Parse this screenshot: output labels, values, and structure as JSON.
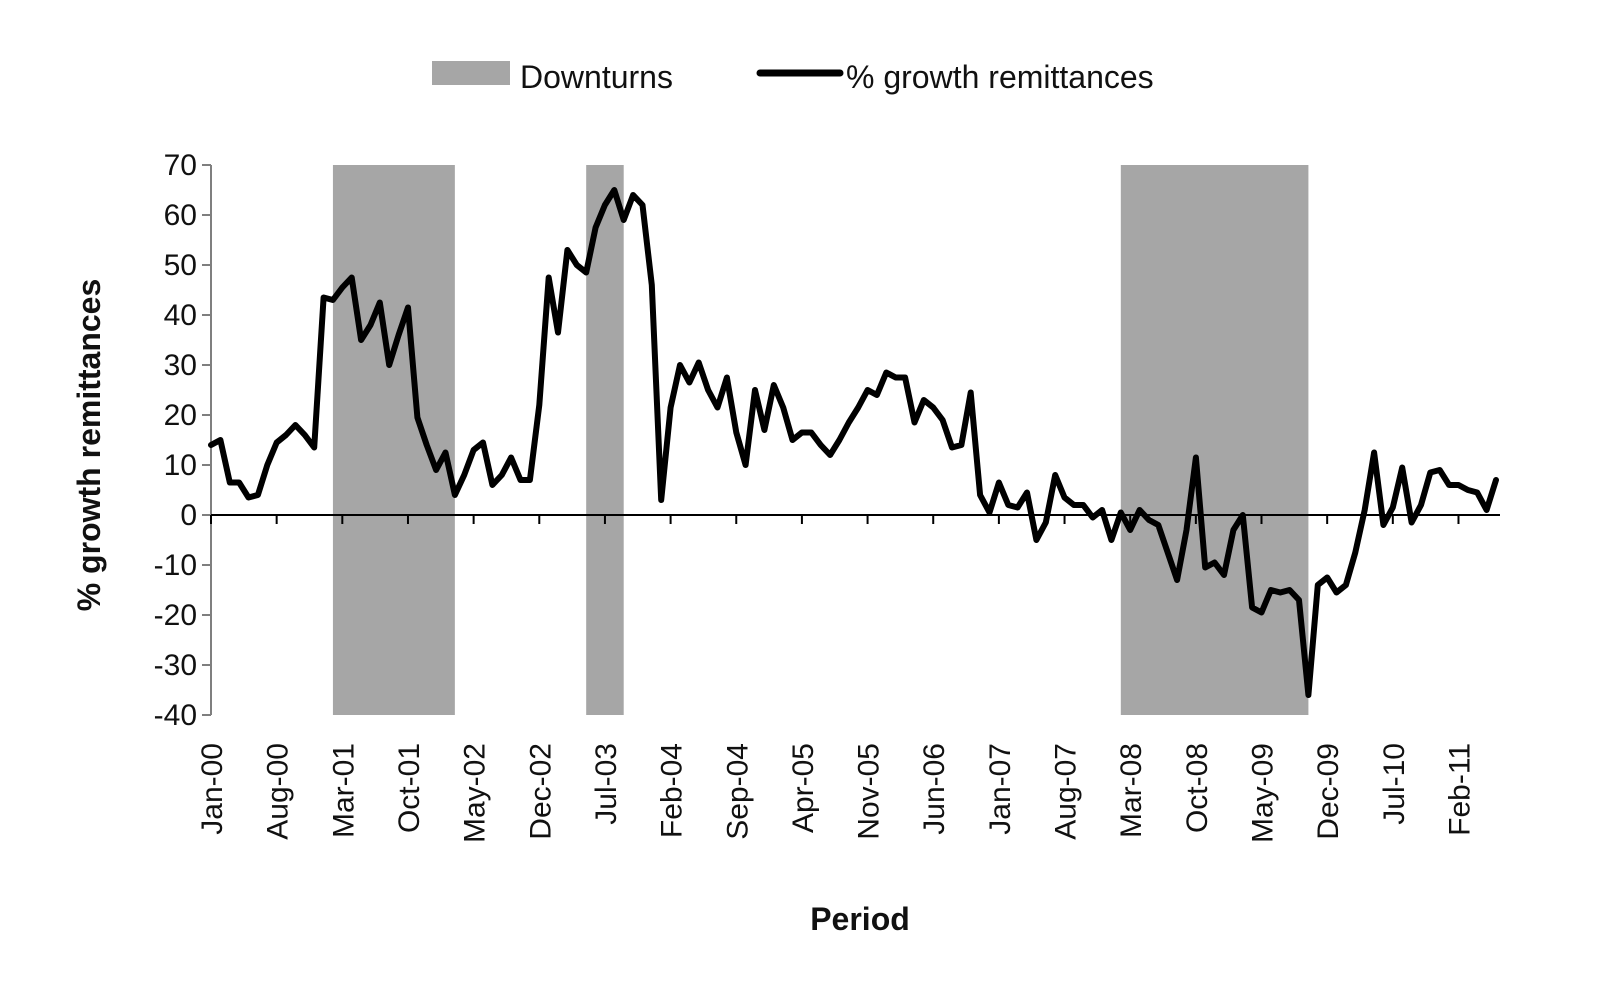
{
  "chart_data": {
    "type": "line",
    "title": "",
    "xlabel": "Period",
    "ylabel": "% growth remittances",
    "ylim": [
      -40,
      70
    ],
    "yticks": [
      70,
      60,
      50,
      40,
      30,
      20,
      10,
      0,
      -10,
      -20,
      -30,
      -40
    ],
    "x_start": "Jan-00",
    "x_end": "Jul-11",
    "x_tick_labels": [
      "Jan-00",
      "Aug-00",
      "Mar-01",
      "Oct-01",
      "May-02",
      "Dec-02",
      "Jul-03",
      "Feb-04",
      "Sep-04",
      "Apr-05",
      "Nov-05",
      "Jun-06",
      "Jan-07",
      "Aug-07",
      "Mar-08",
      "Oct-08",
      "May-09",
      "Dec-09",
      "Jul-10",
      "Feb-11"
    ],
    "grid": false,
    "legend": {
      "position": "top",
      "entries": [
        {
          "label": "Downturns",
          "kind": "area",
          "color": "#a6a6a6"
        },
        {
          "label": "% growth remittances",
          "kind": "line",
          "color": "#000000"
        }
      ]
    },
    "shaded_regions": [
      {
        "label": "Downturns",
        "start": "Feb-01",
        "end": "Mar-02"
      },
      {
        "label": "Downturns",
        "start": "May-03",
        "end": "Sep-03"
      },
      {
        "label": "Downturns",
        "start": "Feb-08",
        "end": "Oct-09"
      }
    ],
    "series": [
      {
        "name": "% growth remittances",
        "color": "#000000",
        "values": [
          14,
          15,
          6.5,
          6.5,
          3.5,
          4,
          10,
          14.5,
          16,
          18,
          16,
          13.5,
          43.5,
          43,
          45.5,
          47.5,
          35,
          38,
          42.5,
          30,
          36,
          41.5,
          19.5,
          14,
          9,
          12.5,
          4,
          8,
          13,
          14.5,
          6,
          8,
          11.5,
          7,
          7,
          22,
          47.5,
          36.5,
          53,
          50,
          48.5,
          57.5,
          62,
          65,
          59,
          64,
          62,
          46,
          3,
          21.5,
          30,
          26.5,
          30.5,
          25,
          21.5,
          27.5,
          16.5,
          10,
          25,
          17,
          26,
          21.5,
          15,
          16.5,
          16.5,
          14,
          12,
          15,
          18.5,
          21.5,
          25,
          24,
          28.5,
          27.5,
          27.5,
          18.5,
          23,
          21.5,
          19,
          13.5,
          14,
          24.5,
          4,
          0.5,
          6.5,
          2,
          1.5,
          4.5,
          -5,
          -1.5,
          8,
          3.5,
          2,
          2,
          -0.5,
          1,
          -5,
          0.5,
          -3,
          1,
          -1,
          -2,
          -7.5,
          -13,
          -3,
          11.5,
          -10.5,
          -9.5,
          -12,
          -3,
          0,
          -18.5,
          -19.5,
          -15,
          -15.5,
          -15,
          -17,
          -36,
          -14,
          -12.5,
          -15.5,
          -14,
          -7.5,
          1,
          12.5,
          -2,
          1.5,
          9.5,
          -1.5,
          2,
          8.5,
          9,
          6,
          6,
          5,
          4.5,
          1,
          7
        ]
      }
    ]
  }
}
